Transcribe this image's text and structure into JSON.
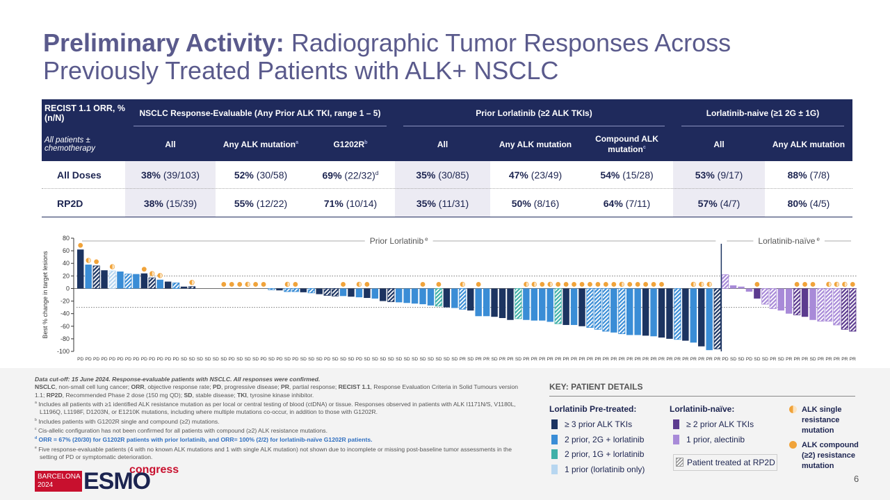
{
  "title": {
    "bold": "Preliminary Activity:",
    "rest": " Radiographic Tumor Responses Across Previously Treated Patients with ALK+ NSCLC"
  },
  "table": {
    "corner": "RECIST 1.1 ORR, % (n/N)",
    "corner_sub": "All patients ± chemotherapy",
    "groups": [
      {
        "label": "NSCLC Response-Evaluable (Any Prior ALK TKI, range 1 – 5)",
        "columns": [
          {
            "label": "All"
          },
          {
            "label": "Any ALK mutation",
            "sup": "a"
          },
          {
            "label": "G1202R",
            "sup": "b"
          }
        ]
      },
      {
        "label": "Prior Lorlatinib (≥2 ALK TKIs)",
        "columns": [
          {
            "label": "All"
          },
          {
            "label": "Any ALK mutation"
          },
          {
            "label": "Compound ALK mutation",
            "sup": "c"
          }
        ]
      },
      {
        "label": "Lorlatinib-naive (≥1 2G ± 1G)",
        "columns": [
          {
            "label": "All"
          },
          {
            "label": "Any ALK mutation"
          }
        ]
      }
    ],
    "rows": [
      {
        "label": "All Doses",
        "cells": [
          {
            "pct": "38%",
            "n": " (39/103)"
          },
          {
            "pct": "52%",
            "n": " (30/58)"
          },
          {
            "pct": "69%",
            "n": " (22/32)",
            "sup": "d"
          },
          {
            "pct": "35%",
            "n": " (30/85)"
          },
          {
            "pct": "47%",
            "n": " (23/49)"
          },
          {
            "pct": "54%",
            "n": " (15/28)"
          },
          {
            "pct": "53%",
            "n": " (9/17)"
          },
          {
            "pct": "88%",
            "n": " (7/8)"
          }
        ]
      },
      {
        "label": "RP2D",
        "cells": [
          {
            "pct": "38%",
            "n": " (15/39)"
          },
          {
            "pct": "55%",
            "n": " (12/22)"
          },
          {
            "pct": "71%",
            "n": " (10/14)"
          },
          {
            "pct": "35%",
            "n": " (11/31)"
          },
          {
            "pct": "50%",
            "n": " (8/16)"
          },
          {
            "pct": "64%",
            "n": " (7/11)"
          },
          {
            "pct": "57%",
            "n": " (4/7)"
          },
          {
            "pct": "80%",
            "n": " (4/5)"
          }
        ]
      }
    ]
  },
  "chart_data": {
    "type": "waterfall",
    "ylabel": "Best % change in target lesions",
    "ylim": [
      -100,
      80
    ],
    "yticks": [
      80,
      60,
      40,
      20,
      0,
      -20,
      -40,
      -60,
      -80,
      -100
    ],
    "ref_lines": [
      20,
      -30
    ],
    "sections": [
      {
        "label": "Prior Lorlatinib",
        "sup": "e"
      },
      {
        "label": "Lorlatinib-naïve",
        "sup": "e"
      }
    ],
    "groups": [
      {
        "name": "≥ 3 prior ALK TKIs",
        "color": "#1c3461"
      },
      {
        "name": "2 prior, 2G + lorlatinib",
        "color": "#3a8dd6"
      },
      {
        "name": "2 prior, 1G + lorlatinib",
        "color": "#3fb0a8"
      },
      {
        "name": "1 prior (lorlatinib only)",
        "color": "#b7d6f0"
      },
      {
        "name": "≥ 2 prior ALK TKIs",
        "color": "#5c3b8f"
      },
      {
        "name": "1 prior, alectinib",
        "color": "#a88ad8"
      }
    ],
    "markers": [
      {
        "name": "ALK single resistance mutation",
        "color": "#f0a33a"
      },
      {
        "name": "ALK compound (≥2) resistance mutation",
        "color": "#f0a33a"
      }
    ],
    "rp2d_label": "Patient treated at RP2D",
    "categories": [
      "PD",
      "PD",
      "PD",
      "PD",
      "PD",
      "PD",
      "PD",
      "PD",
      "PD",
      "PD",
      "PD",
      "PD",
      "PD",
      "SD",
      "SD",
      "SD",
      "SD",
      "SD",
      "SD",
      "PD",
      "SD",
      "SD",
      "SD",
      "PD",
      "SD",
      "PD",
      "SD",
      "PD",
      "SD",
      "SD",
      "SD",
      "PD",
      "SD",
      "SD",
      "SD",
      "PD",
      "SD",
      "SD",
      "SD",
      "SD",
      "SD",
      "SD",
      "SD",
      "SD",
      "SD",
      "SD",
      "SD",
      "SD",
      "PR",
      "SD",
      "PR",
      "PR",
      "SD",
      "PR",
      "PR",
      "SD",
      "PR",
      "PR",
      "PR",
      "PR",
      "PR",
      "PR",
      "PR",
      "PR",
      "PR",
      "PR",
      "PR",
      "PR",
      "PR",
      "PR",
      "PR",
      "PR",
      "PR",
      "PR",
      "PR",
      "PR",
      "PR",
      "PR",
      "PR",
      "PR",
      "PR",
      "PD",
      "SD",
      "SD",
      "PD",
      "SD",
      "SD",
      "PR",
      "SD",
      "PR",
      "PR",
      "PR",
      "SD",
      "PR",
      "PR",
      "PR",
      "PR",
      "PR"
    ],
    "values": [
      62,
      38,
      36,
      29,
      28,
      27,
      23,
      23,
      24,
      17,
      14,
      11,
      9,
      3,
      3,
      0,
      0,
      0,
      0,
      0,
      0,
      0,
      0,
      0,
      -2,
      -3,
      -5,
      -5,
      -6,
      -7,
      -9,
      -11,
      -12,
      -12,
      -13,
      -14,
      -15,
      -16,
      -20,
      -21,
      -22,
      -23,
      -24,
      -25,
      -27,
      -28,
      -30,
      -31,
      -33,
      -35,
      -44,
      -44,
      -45,
      -47,
      -50,
      -48,
      -50,
      -51,
      -51,
      -53,
      -56,
      -58,
      -58,
      -60,
      -62,
      -65,
      -68,
      -70,
      -72,
      -74,
      -74,
      -75,
      -76,
      -78,
      -80,
      -81,
      -83,
      -86,
      -92,
      -98,
      -96,
      22,
      5,
      3,
      -5,
      -16,
      -25,
      -32,
      -35,
      -40,
      -42,
      -45,
      -50,
      -52,
      -52,
      -58,
      -65,
      -68
    ],
    "group": [
      0,
      1,
      0,
      0,
      3,
      1,
      1,
      1,
      0,
      0,
      1,
      0,
      1,
      0,
      0,
      1,
      1,
      0,
      1,
      0,
      1,
      1,
      0,
      1,
      1,
      0,
      1,
      1,
      0,
      1,
      0,
      0,
      0,
      1,
      0,
      1,
      0,
      1,
      0,
      0,
      1,
      1,
      1,
      1,
      1,
      2,
      0,
      1,
      1,
      0,
      1,
      1,
      0,
      0,
      0,
      2,
      1,
      1,
      1,
      1,
      2,
      0,
      1,
      0,
      1,
      1,
      1,
      1,
      1,
      1,
      1,
      0,
      1,
      0,
      0,
      1,
      0,
      1,
      0,
      1,
      0,
      5,
      5,
      5,
      5,
      4,
      5,
      5,
      5,
      5,
      4,
      4,
      5,
      5,
      5,
      5,
      4,
      4
    ],
    "rp2d": [
      false,
      false,
      true,
      false,
      true,
      false,
      true,
      false,
      false,
      true,
      false,
      false,
      true,
      false,
      true,
      false,
      false,
      false,
      false,
      false,
      false,
      false,
      false,
      false,
      true,
      false,
      true,
      true,
      false,
      true,
      false,
      true,
      true,
      false,
      false,
      false,
      false,
      false,
      false,
      true,
      false,
      false,
      false,
      false,
      false,
      true,
      false,
      false,
      true,
      false,
      false,
      false,
      false,
      false,
      false,
      true,
      false,
      false,
      false,
      false,
      true,
      false,
      false,
      false,
      true,
      true,
      true,
      false,
      true,
      false,
      false,
      false,
      false,
      false,
      false,
      true,
      false,
      false,
      false,
      false,
      true,
      true,
      false,
      false,
      false,
      false,
      true,
      true,
      false,
      false,
      true,
      false,
      false,
      true,
      true,
      true,
      true,
      true
    ],
    "mutation": [
      1,
      0,
      1,
      null,
      0,
      null,
      null,
      null,
      1,
      0,
      0,
      null,
      null,
      null,
      0,
      null,
      null,
      null,
      1,
      1,
      1,
      0,
      1,
      1,
      null,
      null,
      0,
      1,
      null,
      null,
      null,
      null,
      null,
      1,
      null,
      0,
      1,
      null,
      null,
      null,
      null,
      null,
      null,
      1,
      null,
      1,
      null,
      null,
      0,
      null,
      1,
      null,
      null,
      null,
      null,
      null,
      0,
      0,
      1,
      0,
      1,
      1,
      1,
      1,
      1,
      1,
      1,
      1,
      0,
      1,
      1,
      1,
      1,
      1,
      null,
      null,
      null,
      0,
      0,
      0,
      null,
      null,
      null,
      null,
      null,
      1,
      null,
      null,
      null,
      null,
      1,
      1,
      1,
      null,
      0,
      0,
      0,
      1
    ]
  },
  "notes": {
    "cutoff": "Data cut-off: 15 June 2024. Response-evaluable patients with NSCLC. All responses were confirmed.",
    "abbreviations": [
      {
        "term": "NSCLC",
        "def": ", non-small cell lung cancer; "
      },
      {
        "term": "ORR",
        "def": ", objective response rate; "
      },
      {
        "term": "PD",
        "def": ", progressive disease; "
      },
      {
        "term": "PR",
        "def": ", partial response; "
      },
      {
        "term": "RECIST 1.1",
        "def": ", Response Evaluation Criteria in Solid Tumours version 1.1; "
      },
      {
        "term": "RP2D",
        "def": ", Recommended Phase 2 dose (150 mg QD); "
      },
      {
        "term": "SD",
        "def": ", stable disease; "
      },
      {
        "term": "TKI",
        "def": ", tyrosine kinase inhibitor."
      }
    ],
    "footnotes": [
      {
        "sup": "a",
        "text": " Includes all patients with ≥1 identified ALK resistance mutation as per local or central testing of blood (ctDNA) or tissue. Responses observed in patients with ALK I1171N/S, V1180L, L1196Q, L1198F, D1203N, or E1210K mutations, including where multiple mutations co-occur, in addition to those with G1202R."
      },
      {
        "sup": "b",
        "text": " Includes patients with G1202R single and compound (≥2) mutations."
      },
      {
        "sup": "c",
        "text": " Cis-allelic configuration has not been confirmed for all patients with compound (≥2) ALK resistance mutations."
      },
      {
        "sup": "d",
        "text": " ORR = 67% (20/30) for G1202R patients with prior lorlatinib, and ORR= 100% (2/2) for lorlatinib-naïve G1202R patients."
      },
      {
        "sup": "e",
        "text": " Five response-evaluable patients (4 with no known ALK mutations and 1 with single ALK mutation) not shown due to incomplete or missing post-baseline tumor assessments in the setting of PD or symptomatic deterioration."
      }
    ]
  },
  "key": {
    "title": "KEY: PATIENT DETAILS",
    "pretreated": "Lorlatinib Pre-treated:",
    "naive": "Lorlatinib-naïve:"
  },
  "logo": {
    "city": "BARCELONA",
    "year": "2024",
    "name": "ESMO",
    "suffix": "congress"
  },
  "page_number": "6"
}
